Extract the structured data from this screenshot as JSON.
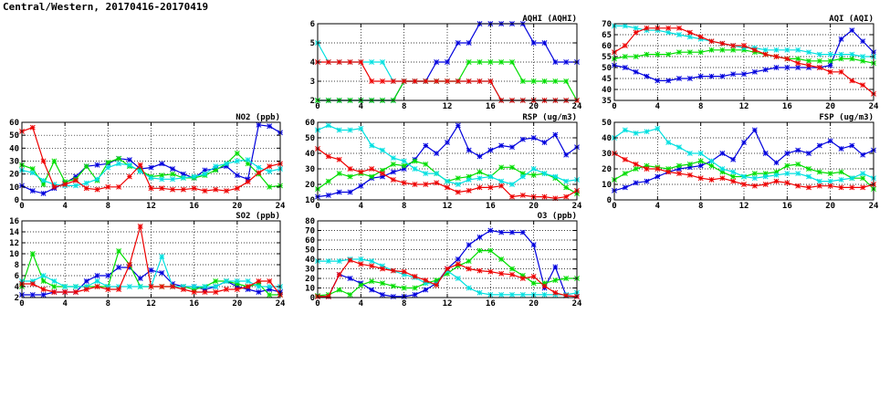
{
  "page_title": "Central/Western, 20170416-20170419",
  "series_colors": [
    "#0000dd",
    "#00dd00",
    "#00e0e0",
    "#ee0000"
  ],
  "chart_data": [
    {
      "id": "no2",
      "type": "line",
      "title": "NO2 (ppb)",
      "xlim": [
        0,
        24
      ],
      "ylim": [
        0,
        60
      ],
      "xticks": [
        0,
        4,
        8,
        12,
        16,
        20,
        24
      ],
      "yticks": [
        0,
        10,
        20,
        30,
        40,
        50,
        60
      ],
      "grid": true,
      "series": [
        {
          "color": "#0000dd",
          "values": [
            11,
            7,
            5,
            9,
            13,
            18,
            26,
            27,
            28,
            32,
            31,
            24,
            25,
            28,
            24,
            20,
            17,
            23,
            24,
            26,
            19,
            16,
            58,
            57,
            52
          ]
        },
        {
          "color": "#00dd00",
          "values": [
            27,
            24,
            12,
            30,
            14,
            16,
            26,
            15,
            29,
            32,
            26,
            23,
            18,
            19,
            20,
            17,
            17,
            19,
            23,
            28,
            36,
            28,
            20,
            10,
            11
          ]
        },
        {
          "color": "#00e0e0",
          "values": [
            23,
            21,
            15,
            12,
            11,
            11,
            13,
            16,
            25,
            28,
            27,
            22,
            17,
            16,
            16,
            17,
            18,
            20,
            26,
            28,
            30,
            31,
            25,
            22,
            24
          ]
        },
        {
          "color": "#ee0000",
          "values": [
            53,
            56,
            30,
            10,
            12,
            15,
            9,
            8,
            10,
            10,
            18,
            27,
            9,
            9,
            8,
            8,
            9,
            7,
            8,
            7,
            9,
            14,
            21,
            26,
            28
          ]
        }
      ]
    },
    {
      "id": "so2",
      "type": "line",
      "title": "SO2 (ppb)",
      "xlim": [
        0,
        24
      ],
      "ylim": [
        2,
        16
      ],
      "xticks": [
        0,
        4,
        8,
        12,
        16,
        20,
        24
      ],
      "yticks": [
        2,
        4,
        6,
        8,
        10,
        12,
        14,
        16
      ],
      "grid": true,
      "series": [
        {
          "color": "#0000dd",
          "values": [
            2.5,
            2.5,
            2.5,
            3,
            3,
            3,
            5,
            6,
            6,
            7.5,
            7.5,
            5.5,
            7,
            6.5,
            4.5,
            4,
            4,
            3.5,
            4,
            5,
            4,
            3.5,
            3,
            3.5,
            3
          ]
        },
        {
          "color": "#00dd00",
          "values": [
            4,
            10,
            5,
            4,
            4,
            4,
            4,
            4,
            4,
            10.5,
            8,
            4,
            4,
            4,
            4,
            4,
            3.5,
            4,
            5,
            5,
            4.5,
            4,
            4.5,
            2.5,
            2.5
          ]
        },
        {
          "color": "#00e0e0",
          "values": [
            5,
            5,
            6,
            5,
            4,
            4,
            4,
            5,
            4,
            4,
            4,
            4,
            4,
            9.5,
            4,
            4,
            4,
            4,
            4,
            5,
            5,
            5,
            4,
            4,
            4
          ]
        },
        {
          "color": "#ee0000",
          "values": [
            4.5,
            4.5,
            3.5,
            3,
            3,
            3,
            3.5,
            4,
            3.5,
            3.5,
            8,
            15,
            4,
            4,
            4,
            3.5,
            3,
            3,
            3,
            3.5,
            3.5,
            4,
            5,
            5,
            2.5
          ]
        }
      ]
    },
    {
      "id": "aqhi",
      "type": "line",
      "title": "AQHI (AQHI)",
      "xlim": [
        0,
        24
      ],
      "ylim": [
        2,
        6
      ],
      "xticks": [
        0,
        4,
        8,
        12,
        16,
        20,
        24
      ],
      "yticks": [
        2,
        3,
        4,
        5,
        6
      ],
      "grid": true,
      "series": [
        {
          "color": "#0000dd",
          "values": [
            2,
            2,
            2,
            2,
            2,
            2,
            2,
            2,
            3,
            3,
            3,
            4,
            4,
            5,
            5,
            6,
            6,
            6,
            6,
            6,
            5,
            5,
            4,
            4,
            4
          ]
        },
        {
          "color": "#00dd00",
          "values": [
            2,
            2,
            2,
            2,
            2,
            2,
            2,
            2,
            3,
            3,
            3,
            3,
            3,
            3,
            4,
            4,
            4,
            4,
            4,
            3,
            3,
            3,
            3,
            3,
            2
          ]
        },
        {
          "color": "#00e0e0",
          "values": [
            5,
            4,
            4,
            4,
            4,
            4,
            4,
            3,
            3,
            3,
            3,
            3,
            3,
            3,
            3,
            3,
            3,
            2,
            2,
            2,
            2,
            2,
            2,
            2,
            2
          ]
        },
        {
          "color": "#ee0000",
          "values": [
            4,
            4,
            4,
            4,
            4,
            3,
            3,
            3,
            3,
            3,
            3,
            3,
            3,
            3,
            3,
            3,
            3,
            2,
            2,
            2,
            2,
            2,
            2,
            2,
            2
          ]
        }
      ]
    },
    {
      "id": "rsp",
      "type": "line",
      "title": "RSP (ug/m3)",
      "xlim": [
        0,
        24
      ],
      "ylim": [
        10,
        60
      ],
      "xticks": [
        0,
        4,
        8,
        12,
        16,
        20,
        24
      ],
      "yticks": [
        10,
        20,
        30,
        40,
        50,
        60
      ],
      "grid": true,
      "series": [
        {
          "color": "#0000dd",
          "values": [
            12,
            13,
            15,
            15,
            19,
            24,
            25,
            28,
            30,
            36,
            45,
            40,
            47,
            58,
            42,
            38,
            42,
            45,
            44,
            49,
            50,
            47,
            52,
            39,
            44
          ]
        },
        {
          "color": "#00dd00",
          "values": [
            17,
            22,
            27,
            25,
            27,
            25,
            29,
            33,
            32,
            35,
            33,
            27,
            22,
            24,
            25,
            28,
            25,
            31,
            31,
            27,
            26,
            27,
            24,
            18,
            14
          ]
        },
        {
          "color": "#00e0e0",
          "values": [
            55,
            58,
            55,
            55,
            56,
            45,
            42,
            37,
            35,
            30,
            27,
            27,
            22,
            20,
            23,
            24,
            25,
            22,
            20,
            25,
            30,
            27,
            25,
            22,
            23
          ]
        },
        {
          "color": "#ee0000",
          "values": [
            43,
            38,
            36,
            30,
            28,
            30,
            27,
            23,
            21,
            20,
            20,
            21,
            18,
            15,
            16,
            18,
            18,
            19,
            12,
            13,
            12,
            12,
            11,
            12,
            16
          ]
        }
      ]
    },
    {
      "id": "o3",
      "type": "line",
      "title": "O3 (ppb)",
      "xlim": [
        0,
        24
      ],
      "ylim": [
        0,
        80
      ],
      "xticks": [
        0,
        4,
        8,
        12,
        16,
        20,
        24
      ],
      "yticks": [
        0,
        10,
        20,
        30,
        40,
        50,
        60,
        70,
        80
      ],
      "grid": true,
      "series": [
        {
          "color": "#0000dd",
          "values": [
            1,
            1,
            24,
            20,
            15,
            8,
            3,
            1,
            1,
            3,
            8,
            15,
            30,
            40,
            55,
            63,
            70,
            68,
            68,
            68,
            55,
            10,
            32,
            2,
            1
          ]
        },
        {
          "color": "#00dd00",
          "values": [
            2,
            3,
            8,
            3,
            13,
            17,
            15,
            12,
            10,
            10,
            15,
            18,
            25,
            33,
            38,
            49,
            49,
            40,
            30,
            23,
            15,
            15,
            18,
            20,
            20
          ]
        },
        {
          "color": "#00e0e0",
          "values": [
            38,
            38,
            38,
            40,
            40,
            38,
            33,
            28,
            24,
            21,
            15,
            14,
            28,
            20,
            10,
            5,
            3,
            3,
            3,
            3,
            3,
            3,
            3,
            3,
            5
          ]
        },
        {
          "color": "#ee0000",
          "values": [
            1,
            1,
            24,
            39,
            35,
            33,
            30,
            28,
            27,
            22,
            18,
            13,
            30,
            35,
            30,
            28,
            27,
            25,
            24,
            20,
            22,
            12,
            5,
            2,
            1
          ]
        }
      ]
    },
    {
      "id": "aqi",
      "type": "line",
      "title": "AQI (AQI)",
      "xlim": [
        0,
        24
      ],
      "ylim": [
        35,
        70
      ],
      "xticks": [
        0,
        4,
        8,
        12,
        16,
        20,
        24
      ],
      "yticks": [
        35,
        40,
        45,
        50,
        55,
        60,
        65,
        70
      ],
      "grid": true,
      "series": [
        {
          "color": "#0000dd",
          "values": [
            51,
            50,
            48,
            46,
            44,
            44,
            45,
            45,
            46,
            46,
            46,
            47,
            47,
            48,
            49,
            50,
            50,
            50,
            50,
            50,
            51,
            63,
            67,
            62,
            57
          ]
        },
        {
          "color": "#00dd00",
          "values": [
            54,
            55,
            55,
            56,
            56,
            56,
            57,
            57,
            57,
            58,
            58,
            58,
            58,
            57,
            56,
            55,
            54,
            54,
            53,
            53,
            53,
            54,
            54,
            53,
            52
          ]
        },
        {
          "color": "#00e0e0",
          "values": [
            69,
            69,
            68,
            67,
            67,
            66,
            65,
            64,
            63,
            62,
            61,
            60,
            59,
            59,
            58,
            58,
            58,
            58,
            57,
            56,
            56,
            56,
            56,
            55,
            55
          ]
        },
        {
          "color": "#ee0000",
          "values": [
            57,
            60,
            66,
            68,
            68,
            68,
            68,
            66,
            64,
            62,
            61,
            60,
            60,
            58,
            56,
            55,
            54,
            52,
            51,
            50,
            48,
            48,
            44,
            42,
            38
          ]
        }
      ]
    },
    {
      "id": "fsp",
      "type": "line",
      "title": "FSP (ug/m3)",
      "xlim": [
        0,
        24
      ],
      "ylim": [
        0,
        50
      ],
      "xticks": [
        0,
        4,
        8,
        12,
        16,
        20,
        24
      ],
      "yticks": [
        0,
        10,
        20,
        30,
        40,
        50
      ],
      "grid": true,
      "series": [
        {
          "color": "#0000dd",
          "values": [
            6,
            8,
            11,
            12,
            15,
            18,
            20,
            21,
            22,
            25,
            30,
            26,
            37,
            45,
            30,
            24,
            30,
            32,
            30,
            35,
            38,
            33,
            35,
            29,
            32
          ]
        },
        {
          "color": "#00dd00",
          "values": [
            13,
            17,
            20,
            22,
            21,
            20,
            22,
            23,
            25,
            22,
            18,
            15,
            15,
            17,
            17,
            18,
            22,
            23,
            20,
            18,
            17,
            18,
            14,
            14,
            7
          ]
        },
        {
          "color": "#00e0e0",
          "values": [
            40,
            45,
            43,
            44,
            46,
            37,
            34,
            30,
            30,
            25,
            20,
            18,
            15,
            14,
            15,
            16,
            17,
            17,
            15,
            12,
            12,
            13,
            14,
            17,
            14
          ]
        },
        {
          "color": "#ee0000",
          "values": [
            30,
            26,
            23,
            20,
            20,
            18,
            17,
            16,
            14,
            13,
            14,
            12,
            10,
            9,
            10,
            12,
            11,
            9,
            8,
            9,
            9,
            8,
            8,
            8,
            10
          ]
        }
      ]
    }
  ]
}
